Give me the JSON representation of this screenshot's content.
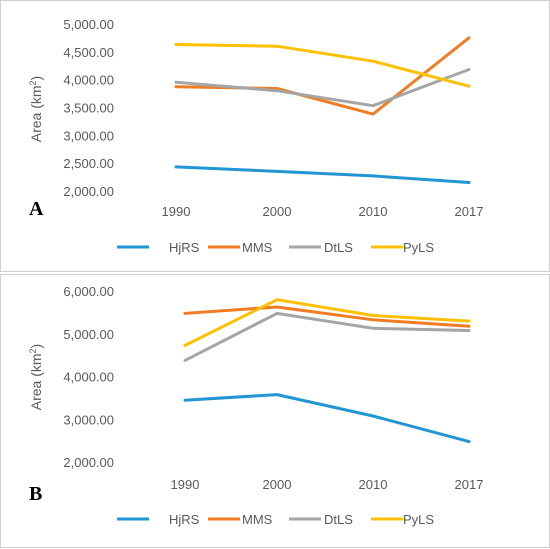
{
  "chart_data": [
    {
      "type": "line",
      "panel_label": "A",
      "ylabel_main": "Area (km",
      "ylabel_sup": "2",
      "ylabel_tail": ")",
      "categories": [
        "1990",
        "2000",
        "2010",
        "2017"
      ],
      "ylim": [
        2000,
        5000
      ],
      "yticks": [
        2000,
        2500,
        3000,
        3500,
        4000,
        4500,
        5000
      ],
      "ytick_labels": [
        "2,000.00",
        "2,500.00",
        "3,000.00",
        "3,500.00",
        "4,000.00",
        "4,500.00",
        "5,000.00"
      ],
      "grid": false,
      "legend_position": "bottom",
      "series": [
        {
          "name": "HjRS",
          "color": "#2196d3",
          "values": [
            2450,
            2370,
            2290,
            2170
          ]
        },
        {
          "name": "MMS",
          "color": "#f07c24",
          "values": [
            3890,
            3860,
            3400,
            4770
          ]
        },
        {
          "name": "DtLS",
          "color": "#a5a5a5",
          "values": [
            3970,
            3820,
            3550,
            4200
          ]
        },
        {
          "name": "PyLS",
          "color": "#ffc000",
          "values": [
            4650,
            4620,
            4350,
            3900
          ]
        }
      ]
    },
    {
      "type": "line",
      "panel_label": "B",
      "ylabel_main": "Area (km",
      "ylabel_sup": "2",
      "ylabel_tail": ")",
      "categories": [
        "1990",
        "2000",
        "2010",
        "2017"
      ],
      "ylim": [
        2000,
        6000
      ],
      "yticks": [
        2000,
        3000,
        4000,
        5000,
        6000
      ],
      "ytick_labels": [
        "2,000.00",
        "3,000.00",
        "4,000.00",
        "5,000.00",
        "6,000.00"
      ],
      "grid": false,
      "legend_position": "bottom",
      "series": [
        {
          "name": "HjRS",
          "color": "#2196d3",
          "values": [
            3470,
            3600,
            3100,
            2500
          ]
        },
        {
          "name": "MMS",
          "color": "#f07c24",
          "values": [
            5500,
            5650,
            5350,
            5200
          ]
        },
        {
          "name": "DtLS",
          "color": "#a5a5a5",
          "values": [
            4400,
            5500,
            5150,
            5100
          ]
        },
        {
          "name": "PyLS",
          "color": "#ffc000",
          "values": [
            4750,
            5820,
            5450,
            5320
          ]
        }
      ]
    }
  ]
}
